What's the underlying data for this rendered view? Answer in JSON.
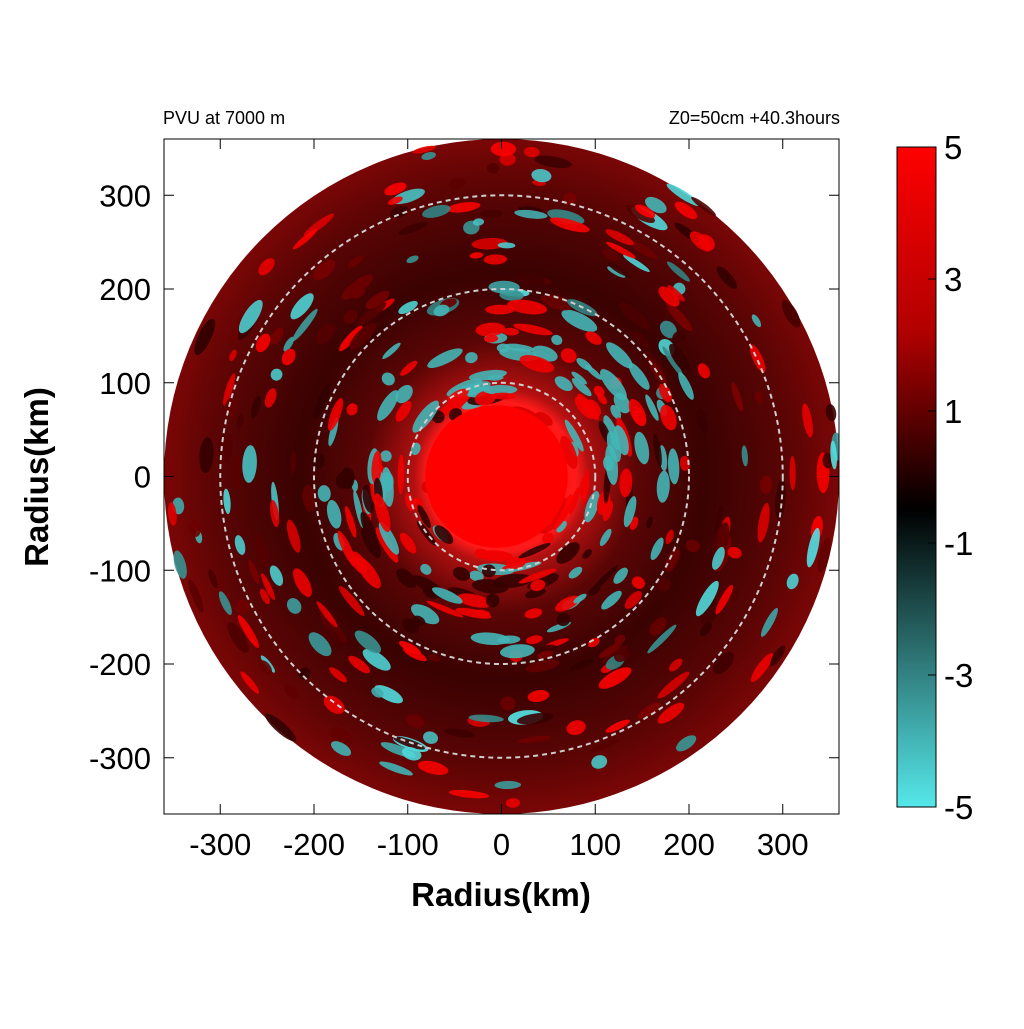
{
  "chart_data": {
    "type": "heatmap",
    "title_left": "PVU at  7000 m",
    "title_right": "Z0=50cm  +40.3hours",
    "xlabel": "Radius(km)",
    "ylabel": "Radius(km)",
    "xlim": [
      -360,
      360
    ],
    "ylim": [
      -360,
      360
    ],
    "x_ticks": [
      -300,
      -200,
      -100,
      0,
      100,
      200,
      300
    ],
    "y_ticks": [
      300,
      200,
      100,
      0,
      -100,
      -200,
      -300
    ],
    "domain_radius_km": 360,
    "range_rings_km": [
      100,
      200,
      300
    ],
    "colorbar": {
      "min": -5,
      "max": 5,
      "ticks": [
        5,
        3,
        1,
        -1,
        -3,
        -5
      ],
      "colors": [
        "#55e8ea",
        "#2f7878",
        "#000000",
        "#b10000",
        "#ff0000"
      ]
    },
    "field_description_values": {
      "core_radius_km": 80,
      "core_value": 5,
      "background_value": 1.8
    },
    "highlight_regions": [
      {
        "label": "negative_band",
        "value": -4
      },
      {
        "label": "positive_band",
        "value": 4.5
      }
    ]
  },
  "icons": {
    "ring": "dashed-circle-icon"
  }
}
